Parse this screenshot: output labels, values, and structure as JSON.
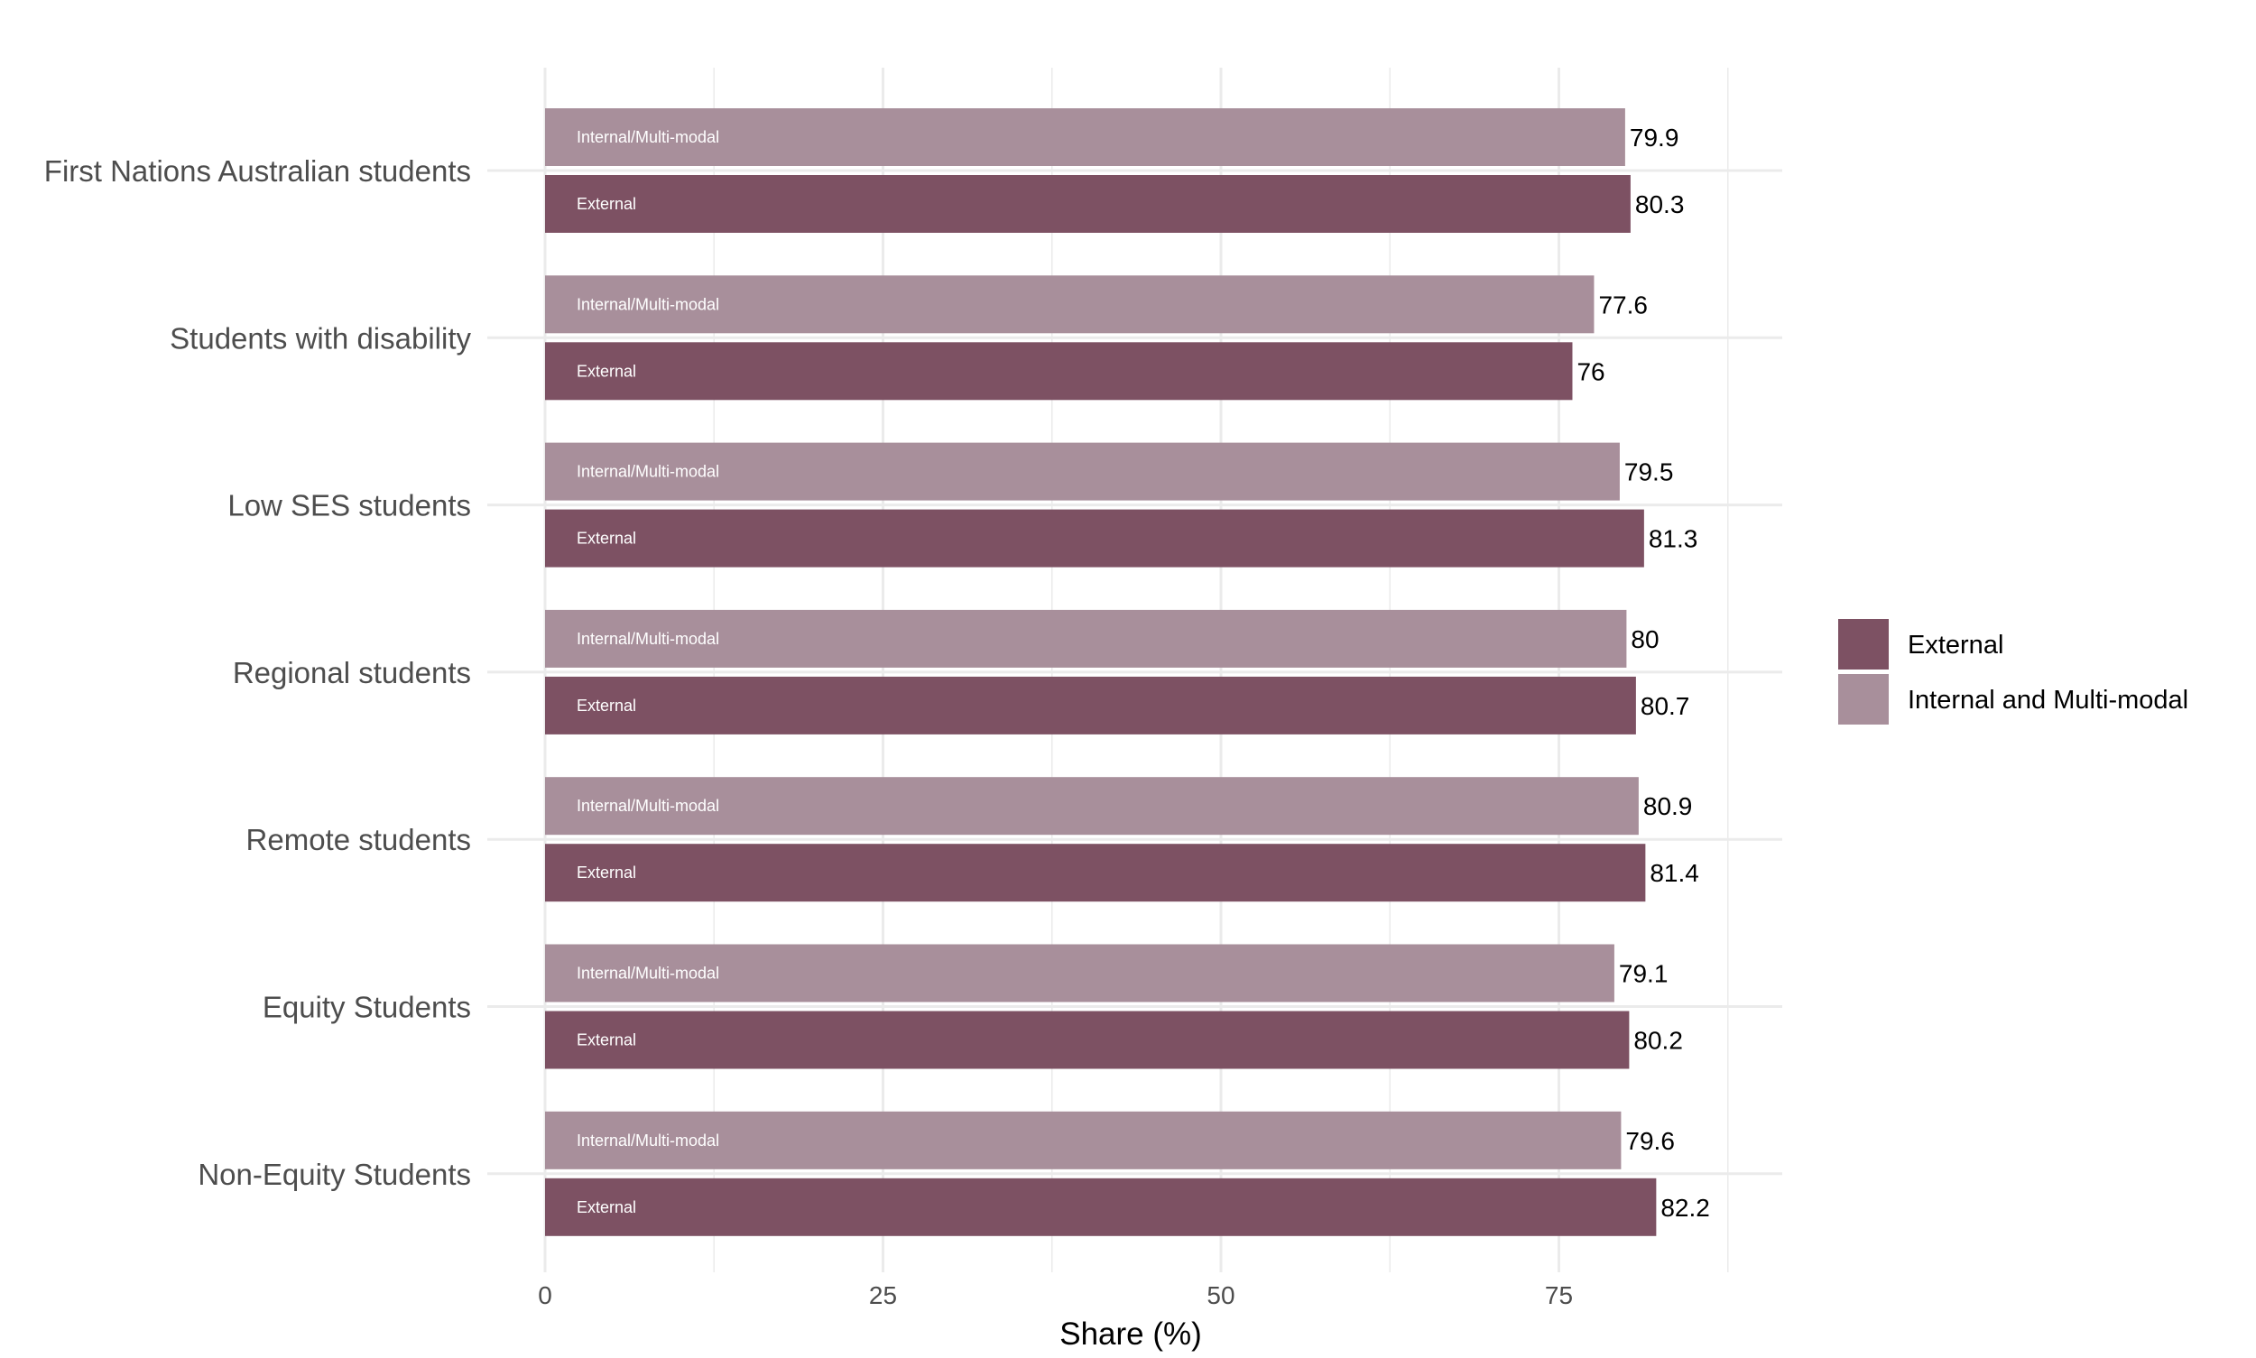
{
  "chart_data": {
    "type": "bar",
    "orientation": "horizontal",
    "xlabel": "Share (%)",
    "ylabel": "",
    "xlim": [
      0,
      90
    ],
    "x_ticks": [
      0,
      25,
      50,
      75
    ],
    "grid": true,
    "legend_position": "right",
    "categories": [
      "First Nations Australian students",
      "Students with disability",
      "Low SES students",
      "Regional students",
      "Remote students",
      "Equity Students",
      "Non-Equity Students"
    ],
    "series": [
      {
        "name": "Internal and Multi-modal",
        "bar_label": "Internal/Multi-modal",
        "color": "#a88f9b",
        "values": [
          79.9,
          77.6,
          79.5,
          80,
          80.9,
          79.1,
          79.6
        ],
        "value_labels": [
          "79.9",
          "77.6",
          "79.5",
          "80",
          "80.9",
          "79.1",
          "79.6"
        ]
      },
      {
        "name": "External",
        "bar_label": "External",
        "color": "#7d5163",
        "values": [
          80.3,
          76,
          81.3,
          80.7,
          81.4,
          80.2,
          82.2
        ],
        "value_labels": [
          "80.3",
          "76",
          "81.3",
          "80.7",
          "81.4",
          "80.2",
          "82.2"
        ]
      }
    ],
    "legend": [
      {
        "name": "External",
        "color": "#7d5163"
      },
      {
        "name": "Internal and Multi-modal",
        "color": "#a88f9b"
      }
    ]
  }
}
